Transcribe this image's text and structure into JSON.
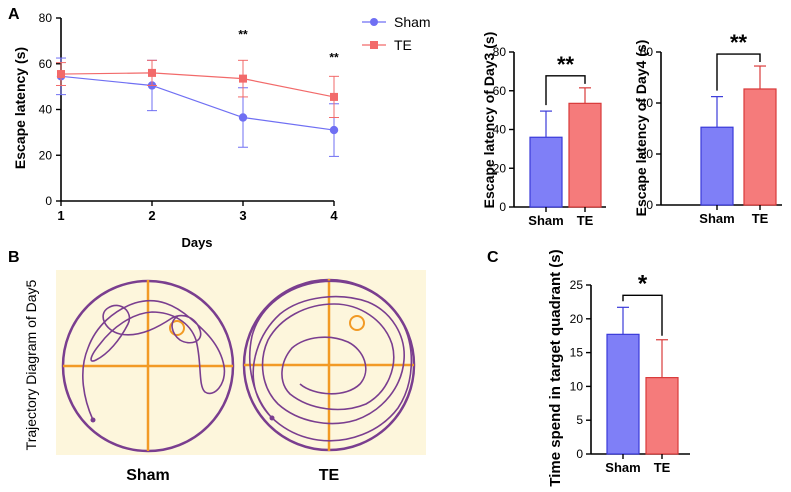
{
  "panels": {
    "a": "A",
    "b": "B",
    "c": "C"
  },
  "colors": {
    "sham": "#6f6ff3",
    "te": "#f26a6a",
    "sham_fill": "#7f7ff7",
    "te_fill": "#f57b7b",
    "sham_edge": "#3a3ad9",
    "te_edge": "#d93a3a",
    "arena_bg": "#fdf6dc",
    "arena_line": "#f29a25",
    "path": "#7a3e8f"
  },
  "chart_data": [
    {
      "id": "line",
      "type": "line",
      "xlabel": "Days",
      "ylabel": "Escape latency (s)",
      "x": [
        1,
        2,
        3,
        4
      ],
      "xlim": [
        1,
        4
      ],
      "ylim": [
        0,
        80
      ],
      "yticks": [
        0,
        20,
        40,
        60,
        80
      ],
      "series": [
        {
          "name": "Sham",
          "values": [
            54.5,
            50.5,
            36.5,
            31
          ],
          "errors": [
            8,
            11,
            13,
            11.5
          ]
        },
        {
          "name": "TE",
          "values": [
            55.5,
            56,
            53.5,
            45.5
          ],
          "errors": [
            5,
            5.5,
            8,
            9
          ]
        }
      ],
      "annotations": [
        {
          "x": 3,
          "text": "**",
          "y": 71
        },
        {
          "x": 4,
          "text": "**",
          "y": 61
        }
      ]
    },
    {
      "id": "day3",
      "type": "bar",
      "categories": [
        "Sham",
        "TE"
      ],
      "values": [
        36,
        53.5
      ],
      "errors": [
        13.5,
        8
      ],
      "ylabel": "Escape latency of Day3 (s)",
      "ylim": [
        0,
        80
      ],
      "yticks": [
        0,
        20,
        40,
        60,
        80
      ],
      "significance": "**"
    },
    {
      "id": "day4",
      "type": "bar",
      "categories": [
        "Sham",
        "TE"
      ],
      "values": [
        30.5,
        45.5
      ],
      "errors": [
        12,
        9
      ],
      "ylabel": "Escape latency of Day4 (s)",
      "ylim": [
        0,
        60
      ],
      "yticks": [
        0,
        20,
        40,
        60
      ],
      "significance": "**"
    },
    {
      "id": "quadrant",
      "type": "bar",
      "categories": [
        "Sham",
        "TE"
      ],
      "values": [
        17.7,
        11.3
      ],
      "errors": [
        4,
        5.6
      ],
      "ylabel": "Time spend in target quadrant (s)",
      "ylim": [
        0,
        25
      ],
      "yticks": [
        0,
        5,
        10,
        15,
        20,
        25
      ],
      "significance": "*"
    }
  ],
  "trajectory": {
    "ylabel": "Trajectory Diagram of Day5",
    "labels": [
      "Sham",
      "TE"
    ]
  }
}
